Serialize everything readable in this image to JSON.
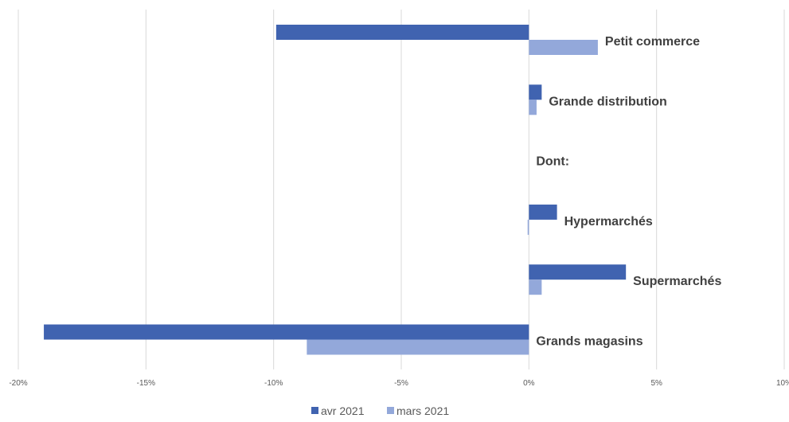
{
  "chart_data": {
    "type": "bar",
    "orientation": "horizontal",
    "categories": [
      "Petit commerce",
      "Grande distribution",
      "Dont:",
      "Hypermarchés",
      "Supermarchés",
      "Grands magasins"
    ],
    "series": [
      {
        "name": "avr 2021",
        "color": "#4063B0",
        "values": [
          -9.9,
          0.5,
          null,
          1.1,
          3.8,
          -19.0
        ]
      },
      {
        "name": "mars 2021",
        "color": "#93A8DA",
        "values": [
          2.7,
          0.3,
          null,
          -0.05,
          0.5,
          -8.7
        ]
      }
    ],
    "xlim": [
      -20,
      10
    ],
    "xticks": [
      -20,
      -15,
      -10,
      -5,
      0,
      5,
      10
    ],
    "xtick_labels": [
      "-20%",
      "-15%",
      "-10%",
      "-5%",
      "0%",
      "5%",
      "10%"
    ],
    "grid": "vertical",
    "legend": "bottom-center",
    "title": "",
    "xlabel": "",
    "ylabel": ""
  }
}
